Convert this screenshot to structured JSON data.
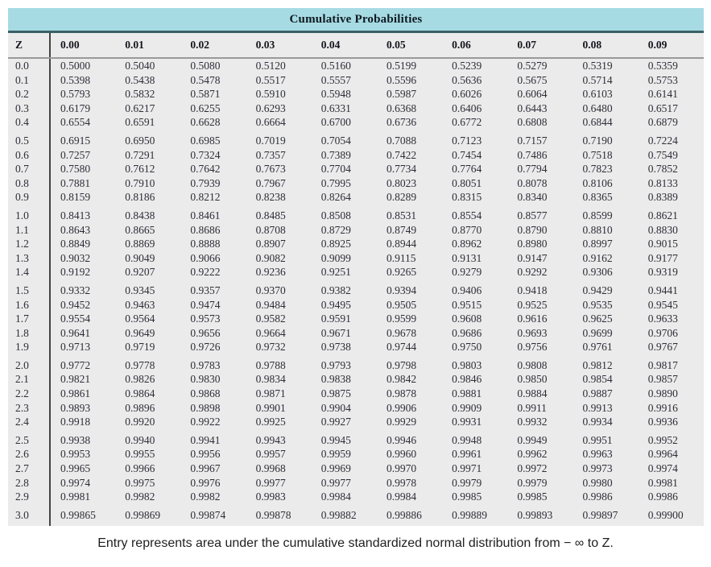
{
  "title": "Cumulative Probabilities",
  "columns": {
    "z_label": "Z",
    "headers": [
      "0.00",
      "0.01",
      "0.02",
      "0.03",
      "0.04",
      "0.05",
      "0.06",
      "0.07",
      "0.08",
      "0.09"
    ]
  },
  "rows": [
    {
      "z": "0.0",
      "values": [
        "0.5000",
        "0.5040",
        "0.5080",
        "0.5120",
        "0.5160",
        "0.5199",
        "0.5239",
        "0.5279",
        "0.5319",
        "0.5359"
      ]
    },
    {
      "z": "0.1",
      "values": [
        "0.5398",
        "0.5438",
        "0.5478",
        "0.5517",
        "0.5557",
        "0.5596",
        "0.5636",
        "0.5675",
        "0.5714",
        "0.5753"
      ]
    },
    {
      "z": "0.2",
      "values": [
        "0.5793",
        "0.5832",
        "0.5871",
        "0.5910",
        "0.5948",
        "0.5987",
        "0.6026",
        "0.6064",
        "0.6103",
        "0.6141"
      ]
    },
    {
      "z": "0.3",
      "values": [
        "0.6179",
        "0.6217",
        "0.6255",
        "0.6293",
        "0.6331",
        "0.6368",
        "0.6406",
        "0.6443",
        "0.6480",
        "0.6517"
      ]
    },
    {
      "z": "0.4",
      "values": [
        "0.6554",
        "0.6591",
        "0.6628",
        "0.6664",
        "0.6700",
        "0.6736",
        "0.6772",
        "0.6808",
        "0.6844",
        "0.6879"
      ]
    },
    {
      "z": "0.5",
      "values": [
        "0.6915",
        "0.6950",
        "0.6985",
        "0.7019",
        "0.7054",
        "0.7088",
        "0.7123",
        "0.7157",
        "0.7190",
        "0.7224"
      ]
    },
    {
      "z": "0.6",
      "values": [
        "0.7257",
        "0.7291",
        "0.7324",
        "0.7357",
        "0.7389",
        "0.7422",
        "0.7454",
        "0.7486",
        "0.7518",
        "0.7549"
      ]
    },
    {
      "z": "0.7",
      "values": [
        "0.7580",
        "0.7612",
        "0.7642",
        "0.7673",
        "0.7704",
        "0.7734",
        "0.7764",
        "0.7794",
        "0.7823",
        "0.7852"
      ]
    },
    {
      "z": "0.8",
      "values": [
        "0.7881",
        "0.7910",
        "0.7939",
        "0.7967",
        "0.7995",
        "0.8023",
        "0.8051",
        "0.8078",
        "0.8106",
        "0.8133"
      ]
    },
    {
      "z": "0.9",
      "values": [
        "0.8159",
        "0.8186",
        "0.8212",
        "0.8238",
        "0.8264",
        "0.8289",
        "0.8315",
        "0.8340",
        "0.8365",
        "0.8389"
      ]
    },
    {
      "z": "1.0",
      "values": [
        "0.8413",
        "0.8438",
        "0.8461",
        "0.8485",
        "0.8508",
        "0.8531",
        "0.8554",
        "0.8577",
        "0.8599",
        "0.8621"
      ]
    },
    {
      "z": "1.1",
      "values": [
        "0.8643",
        "0.8665",
        "0.8686",
        "0.8708",
        "0.8729",
        "0.8749",
        "0.8770",
        "0.8790",
        "0.8810",
        "0.8830"
      ]
    },
    {
      "z": "1.2",
      "values": [
        "0.8849",
        "0.8869",
        "0.8888",
        "0.8907",
        "0.8925",
        "0.8944",
        "0.8962",
        "0.8980",
        "0.8997",
        "0.9015"
      ]
    },
    {
      "z": "1.3",
      "values": [
        "0.9032",
        "0.9049",
        "0.9066",
        "0.9082",
        "0.9099",
        "0.9115",
        "0.9131",
        "0.9147",
        "0.9162",
        "0.9177"
      ]
    },
    {
      "z": "1.4",
      "values": [
        "0.9192",
        "0.9207",
        "0.9222",
        "0.9236",
        "0.9251",
        "0.9265",
        "0.9279",
        "0.9292",
        "0.9306",
        "0.9319"
      ]
    },
    {
      "z": "1.5",
      "values": [
        "0.9332",
        "0.9345",
        "0.9357",
        "0.9370",
        "0.9382",
        "0.9394",
        "0.9406",
        "0.9418",
        "0.9429",
        "0.9441"
      ]
    },
    {
      "z": "1.6",
      "values": [
        "0.9452",
        "0.9463",
        "0.9474",
        "0.9484",
        "0.9495",
        "0.9505",
        "0.9515",
        "0.9525",
        "0.9535",
        "0.9545"
      ]
    },
    {
      "z": "1.7",
      "values": [
        "0.9554",
        "0.9564",
        "0.9573",
        "0.9582",
        "0.9591",
        "0.9599",
        "0.9608",
        "0.9616",
        "0.9625",
        "0.9633"
      ]
    },
    {
      "z": "1.8",
      "values": [
        "0.9641",
        "0.9649",
        "0.9656",
        "0.9664",
        "0.9671",
        "0.9678",
        "0.9686",
        "0.9693",
        "0.9699",
        "0.9706"
      ]
    },
    {
      "z": "1.9",
      "values": [
        "0.9713",
        "0.9719",
        "0.9726",
        "0.9732",
        "0.9738",
        "0.9744",
        "0.9750",
        "0.9756",
        "0.9761",
        "0.9767"
      ]
    },
    {
      "z": "2.0",
      "values": [
        "0.9772",
        "0.9778",
        "0.9783",
        "0.9788",
        "0.9793",
        "0.9798",
        "0.9803",
        "0.9808",
        "0.9812",
        "0.9817"
      ]
    },
    {
      "z": "2.1",
      "values": [
        "0.9821",
        "0.9826",
        "0.9830",
        "0.9834",
        "0.9838",
        "0.9842",
        "0.9846",
        "0.9850",
        "0.9854",
        "0.9857"
      ]
    },
    {
      "z": "2.2",
      "values": [
        "0.9861",
        "0.9864",
        "0.9868",
        "0.9871",
        "0.9875",
        "0.9878",
        "0.9881",
        "0.9884",
        "0.9887",
        "0.9890"
      ]
    },
    {
      "z": "2.3",
      "values": [
        "0.9893",
        "0.9896",
        "0.9898",
        "0.9901",
        "0.9904",
        "0.9906",
        "0.9909",
        "0.9911",
        "0.9913",
        "0.9916"
      ]
    },
    {
      "z": "2.4",
      "values": [
        "0.9918",
        "0.9920",
        "0.9922",
        "0.9925",
        "0.9927",
        "0.9929",
        "0.9931",
        "0.9932",
        "0.9934",
        "0.9936"
      ]
    },
    {
      "z": "2.5",
      "values": [
        "0.9938",
        "0.9940",
        "0.9941",
        "0.9943",
        "0.9945",
        "0.9946",
        "0.9948",
        "0.9949",
        "0.9951",
        "0.9952"
      ]
    },
    {
      "z": "2.6",
      "values": [
        "0.9953",
        "0.9955",
        "0.9956",
        "0.9957",
        "0.9959",
        "0.9960",
        "0.9961",
        "0.9962",
        "0.9963",
        "0.9964"
      ]
    },
    {
      "z": "2.7",
      "values": [
        "0.9965",
        "0.9966",
        "0.9967",
        "0.9968",
        "0.9969",
        "0.9970",
        "0.9971",
        "0.9972",
        "0.9973",
        "0.9974"
      ]
    },
    {
      "z": "2.8",
      "values": [
        "0.9974",
        "0.9975",
        "0.9976",
        "0.9977",
        "0.9977",
        "0.9978",
        "0.9979",
        "0.9979",
        "0.9980",
        "0.9981"
      ]
    },
    {
      "z": "2.9",
      "values": [
        "0.9981",
        "0.9982",
        "0.9982",
        "0.9983",
        "0.9984",
        "0.9984",
        "0.9985",
        "0.9985",
        "0.9986",
        "0.9986"
      ]
    },
    {
      "z": "3.0",
      "values": [
        "0.99865",
        "0.99869",
        "0.99874",
        "0.99878",
        "0.99882",
        "0.99886",
        "0.99889",
        "0.99893",
        "0.99897",
        "0.99900"
      ]
    }
  ],
  "group_start_rows": [
    "0.5",
    "1.0",
    "1.5",
    "2.0",
    "2.5",
    "3.0"
  ],
  "footer": "Entry represents area under the cumulative standardized normal distribution from − ∞ to Z.",
  "colors": {
    "band_bg": "#a7dbe4",
    "band_rule": "#3a6066",
    "table_bg": "#ebebeb",
    "grid_rule": "#999999",
    "vline": "#454545",
    "cell_text": "#2d2d38"
  }
}
